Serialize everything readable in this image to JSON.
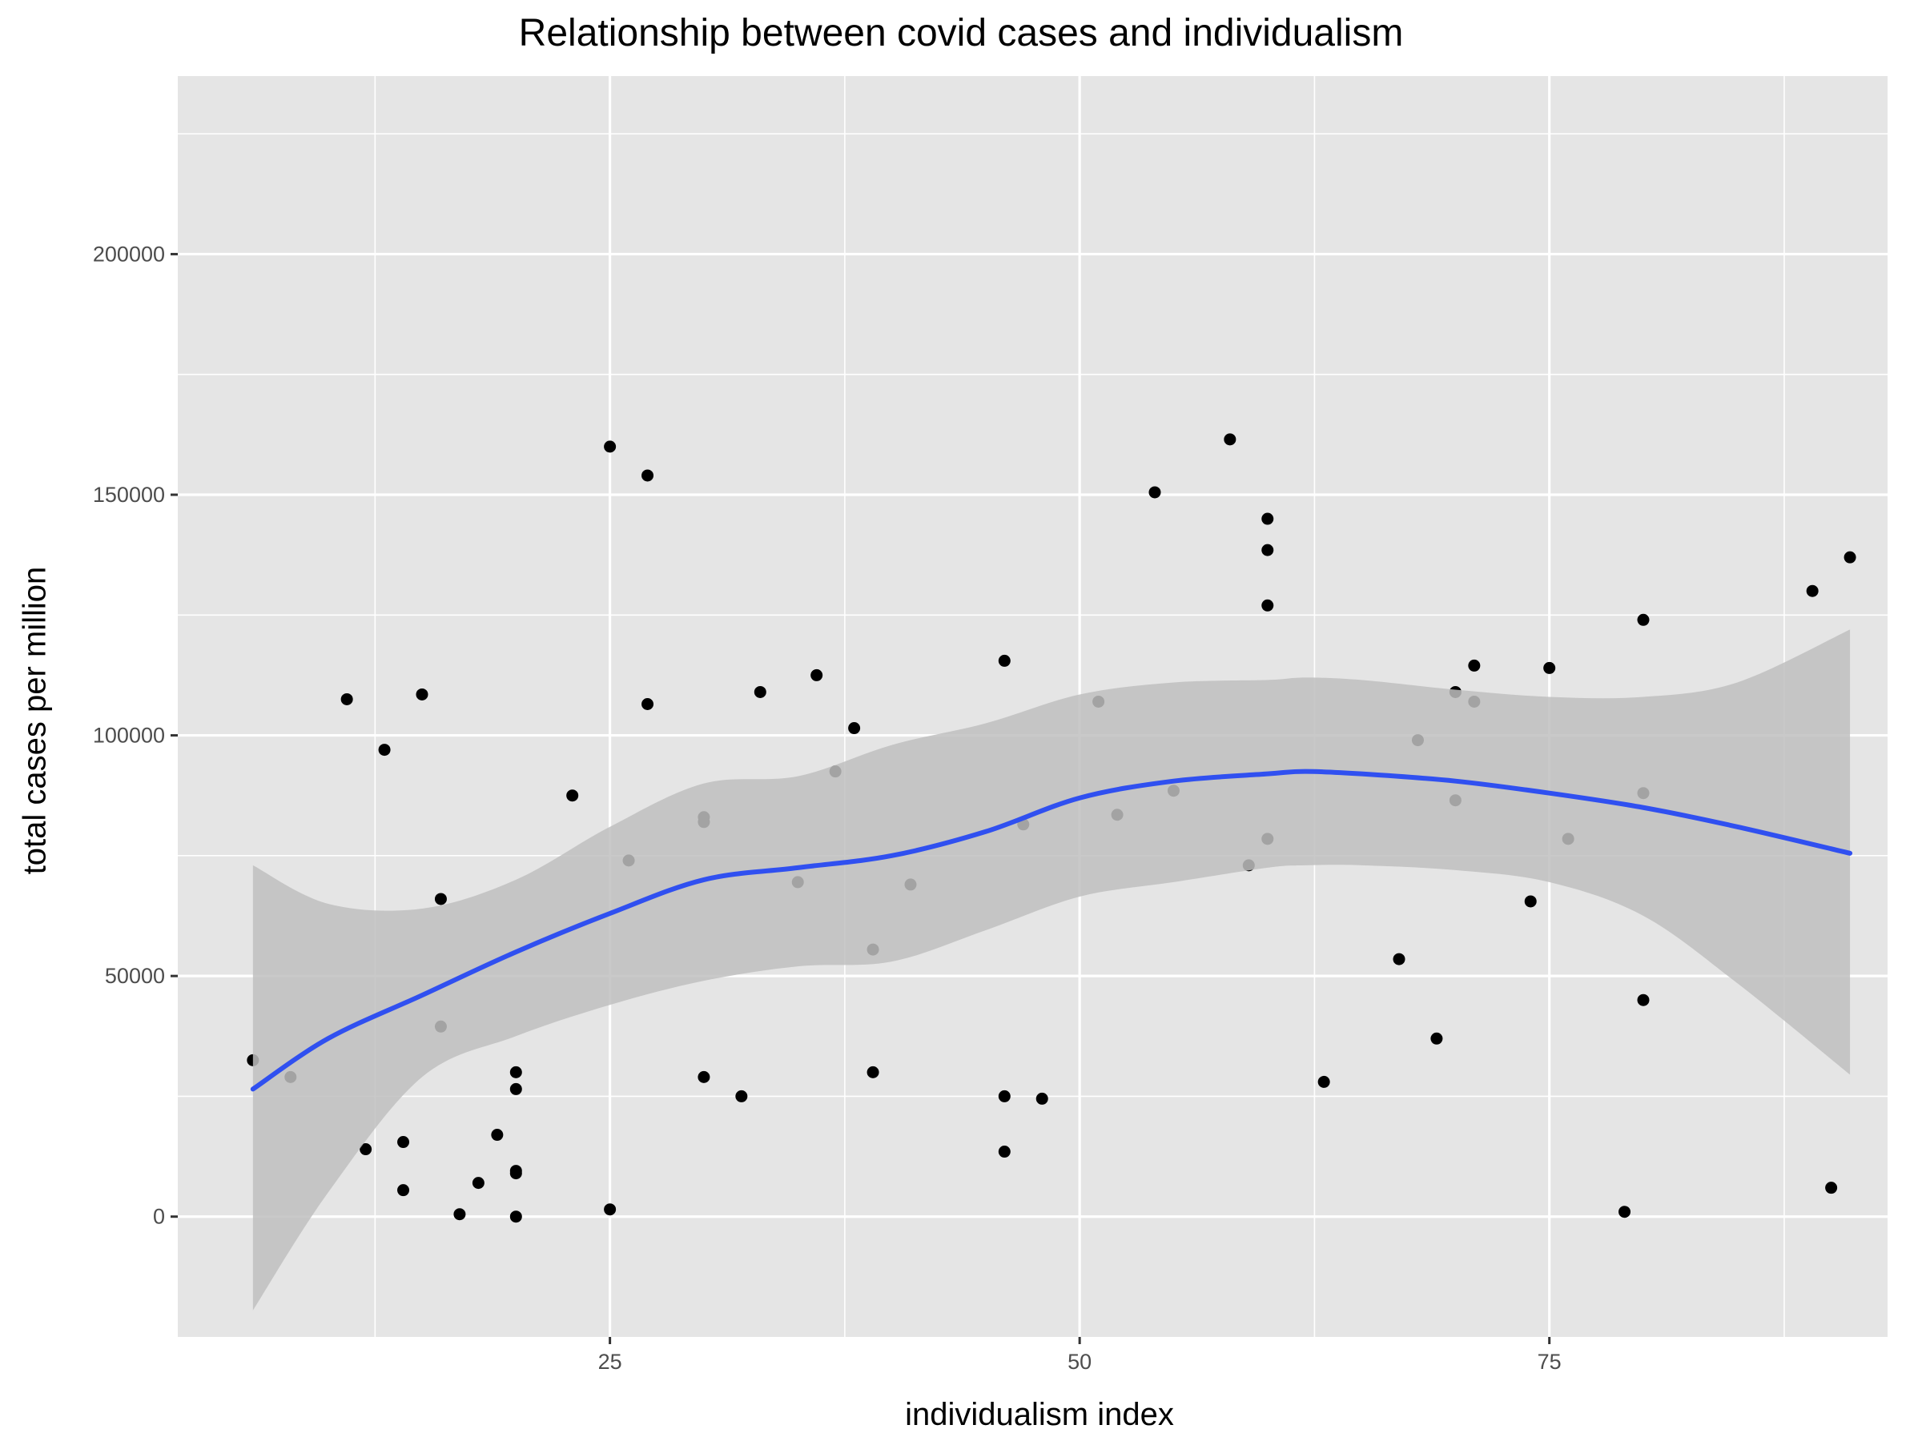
{
  "chart_data": {
    "type": "scatter",
    "title": "Relationship between covid cases and individualism",
    "xlabel": "individualism index",
    "ylabel": "total cases per million",
    "xlim": [
      2,
      93
    ],
    "ylim": [
      -25000,
      237000
    ],
    "x_ticks": [
      25,
      50,
      75
    ],
    "y_ticks": [
      0,
      50000,
      100000,
      150000,
      200000
    ],
    "grid": true,
    "legend": "none",
    "colors": {
      "panel_background": "#e5e5e5",
      "grid": "#ffffff",
      "points": "#000000",
      "smooth_line": "#3050f0",
      "confidence_band": "#bfbfbf"
    },
    "points": [
      {
        "x": 6,
        "y": 32500
      },
      {
        "x": 8,
        "y": 29000
      },
      {
        "x": 11,
        "y": 107500
      },
      {
        "x": 12,
        "y": 14000
      },
      {
        "x": 13,
        "y": 97000
      },
      {
        "x": 14,
        "y": 15500
      },
      {
        "x": 14,
        "y": 5500
      },
      {
        "x": 15,
        "y": 108500
      },
      {
        "x": 16,
        "y": 66000
      },
      {
        "x": 16,
        "y": 39500
      },
      {
        "x": 17,
        "y": 500
      },
      {
        "x": 18,
        "y": 7000
      },
      {
        "x": 19,
        "y": 17000
      },
      {
        "x": 20,
        "y": 30000
      },
      {
        "x": 20,
        "y": 26500
      },
      {
        "x": 20,
        "y": 9500
      },
      {
        "x": 20,
        "y": 9000
      },
      {
        "x": 20,
        "y": 0
      },
      {
        "x": 23,
        "y": 87500
      },
      {
        "x": 25,
        "y": 160000
      },
      {
        "x": 25,
        "y": 1500
      },
      {
        "x": 26,
        "y": 74000
      },
      {
        "x": 27,
        "y": 154000
      },
      {
        "x": 27,
        "y": 106500
      },
      {
        "x": 30,
        "y": 83000
      },
      {
        "x": 30,
        "y": 82000
      },
      {
        "x": 30,
        "y": 29000
      },
      {
        "x": 32,
        "y": 25000
      },
      {
        "x": 33,
        "y": 109000
      },
      {
        "x": 35,
        "y": 69500
      },
      {
        "x": 36,
        "y": 112500
      },
      {
        "x": 37,
        "y": 92500
      },
      {
        "x": 38,
        "y": 101500
      },
      {
        "x": 39,
        "y": 55500
      },
      {
        "x": 39,
        "y": 30000
      },
      {
        "x": 41,
        "y": 69000
      },
      {
        "x": 46,
        "y": 115500
      },
      {
        "x": 46,
        "y": 25000
      },
      {
        "x": 46,
        "y": 13500
      },
      {
        "x": 47,
        "y": 81500
      },
      {
        "x": 48,
        "y": 24500
      },
      {
        "x": 51,
        "y": 107000
      },
      {
        "x": 52,
        "y": 83500
      },
      {
        "x": 54,
        "y": 150500
      },
      {
        "x": 55,
        "y": 88500
      },
      {
        "x": 58,
        "y": 161500
      },
      {
        "x": 59,
        "y": 73000
      },
      {
        "x": 60,
        "y": 145000
      },
      {
        "x": 60,
        "y": 138500
      },
      {
        "x": 60,
        "y": 127000
      },
      {
        "x": 60,
        "y": 78500
      },
      {
        "x": 63,
        "y": 28000
      },
      {
        "x": 67,
        "y": 53500
      },
      {
        "x": 68,
        "y": 99000
      },
      {
        "x": 69,
        "y": 37000
      },
      {
        "x": 70,
        "y": 109000
      },
      {
        "x": 70,
        "y": 86500
      },
      {
        "x": 71,
        "y": 114500
      },
      {
        "x": 71,
        "y": 107000
      },
      {
        "x": 74,
        "y": 65500
      },
      {
        "x": 75,
        "y": 114000
      },
      {
        "x": 76,
        "y": 78500
      },
      {
        "x": 79,
        "y": 1000
      },
      {
        "x": 80,
        "y": 124000
      },
      {
        "x": 80,
        "y": 88000
      },
      {
        "x": 80,
        "y": 45000
      },
      {
        "x": 89,
        "y": 130000
      },
      {
        "x": 90,
        "y": 6000
      },
      {
        "x": 91,
        "y": 137000
      }
    ],
    "smooth": {
      "x": [
        6,
        10,
        15,
        20,
        25,
        30,
        35,
        40,
        45,
        50,
        55,
        60,
        62,
        65,
        70,
        75,
        80,
        85,
        91
      ],
      "y": [
        26500,
        37000,
        46000,
        55000,
        63000,
        70000,
        72500,
        75000,
        80000,
        87000,
        90500,
        92000,
        92500,
        92000,
        90500,
        88000,
        85000,
        81000,
        75500
      ],
      "upper": [
        73000,
        65000,
        64000,
        70000,
        81000,
        90000,
        91500,
        98000,
        102500,
        108500,
        111000,
        111500,
        112000,
        111500,
        109500,
        108000,
        108000,
        111000,
        122000
      ],
      "lower": [
        -19500,
        5000,
        29000,
        37500,
        44000,
        49000,
        52000,
        53000,
        59500,
        66500,
        69500,
        72500,
        73000,
        73000,
        72000,
        69500,
        62500,
        48500,
        29500
      ]
    }
  }
}
